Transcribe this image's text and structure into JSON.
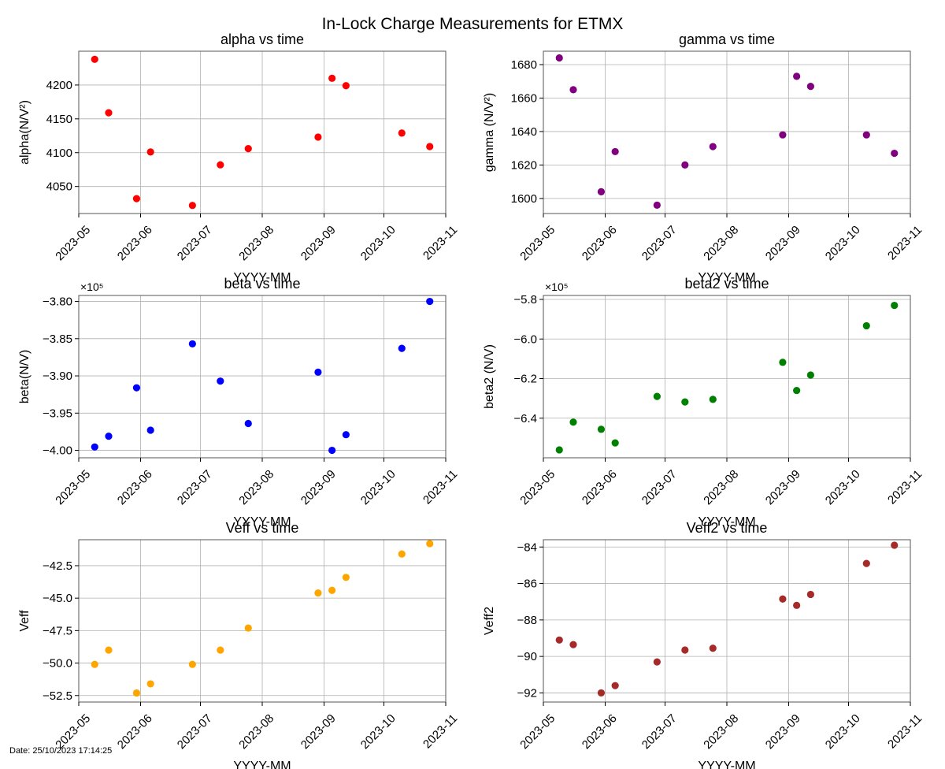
{
  "figure": {
    "title": "In-Lock Charge Measurements for ETMX",
    "date_stamp": "Date: 25/10/2023 17:14:25"
  },
  "chart_data": [
    {
      "id": "alpha",
      "type": "scatter",
      "title": "alpha vs time",
      "xlabel": "YYYY-MM",
      "ylabel": "alpha(N/V²)",
      "color": "#ff0000",
      "grid": true,
      "xlim": [
        "2023-05-01",
        "2023-11-01"
      ],
      "ylim": [
        4010,
        4250
      ],
      "x_ticks": [
        "2023-05",
        "2023-06",
        "2023-07",
        "2023-08",
        "2023-09",
        "2023-10",
        "2023-11"
      ],
      "y_ticks": [
        4050,
        4100,
        4150,
        4200
      ],
      "y_tick_labels": [
        "4050",
        "4100",
        "4150",
        "4200"
      ],
      "y_offset_label": "",
      "points": [
        {
          "x": "2023-05-09",
          "y": 4238
        },
        {
          "x": "2023-05-16",
          "y": 4159
        },
        {
          "x": "2023-05-30",
          "y": 4032
        },
        {
          "x": "2023-06-06",
          "y": 4101
        },
        {
          "x": "2023-06-27",
          "y": 4022
        },
        {
          "x": "2023-07-11",
          "y": 4082
        },
        {
          "x": "2023-07-25",
          "y": 4106
        },
        {
          "x": "2023-08-29",
          "y": 4123
        },
        {
          "x": "2023-09-05",
          "y": 4210
        },
        {
          "x": "2023-09-12",
          "y": 4199
        },
        {
          "x": "2023-10-10",
          "y": 4129
        },
        {
          "x": "2023-10-24",
          "y": 4109
        }
      ]
    },
    {
      "id": "gamma",
      "type": "scatter",
      "title": "gamma vs time",
      "xlabel": "YYYY-MM",
      "ylabel": "gamma (N/V²)",
      "color": "#800080",
      "grid": true,
      "xlim": [
        "2023-05-01",
        "2023-11-01"
      ],
      "ylim": [
        1591,
        1688
      ],
      "x_ticks": [
        "2023-05",
        "2023-06",
        "2023-07",
        "2023-08",
        "2023-09",
        "2023-10",
        "2023-11"
      ],
      "y_ticks": [
        1600,
        1620,
        1640,
        1660,
        1680
      ],
      "y_tick_labels": [
        "1600",
        "1620",
        "1640",
        "1660",
        "1680"
      ],
      "y_offset_label": "",
      "points": [
        {
          "x": "2023-05-09",
          "y": 1684
        },
        {
          "x": "2023-05-16",
          "y": 1665
        },
        {
          "x": "2023-05-30",
          "y": 1604
        },
        {
          "x": "2023-06-06",
          "y": 1628
        },
        {
          "x": "2023-06-27",
          "y": 1596
        },
        {
          "x": "2023-07-11",
          "y": 1620
        },
        {
          "x": "2023-07-25",
          "y": 1631
        },
        {
          "x": "2023-08-29",
          "y": 1638
        },
        {
          "x": "2023-09-05",
          "y": 1673
        },
        {
          "x": "2023-09-12",
          "y": 1667
        },
        {
          "x": "2023-10-10",
          "y": 1638
        },
        {
          "x": "2023-10-24",
          "y": 1627
        }
      ]
    },
    {
      "id": "beta",
      "type": "scatter",
      "title": "beta vs time",
      "xlabel": "YYYY-MM",
      "ylabel": "beta(N/V)",
      "color": "#0000ff",
      "grid": true,
      "xlim": [
        "2023-05-01",
        "2023-11-01"
      ],
      "ylim": [
        -401000,
        -379200
      ],
      "x_ticks": [
        "2023-05",
        "2023-06",
        "2023-07",
        "2023-08",
        "2023-09",
        "2023-10",
        "2023-11"
      ],
      "y_ticks": [
        -400000,
        -395000,
        -390000,
        -385000,
        -380000
      ],
      "y_tick_labels": [
        "−4.00",
        "−3.95",
        "−3.90",
        "−3.85",
        "−3.80"
      ],
      "y_offset_label": "×10⁵",
      "points": [
        {
          "x": "2023-05-09",
          "y": -399550
        },
        {
          "x": "2023-05-16",
          "y": -398100
        },
        {
          "x": "2023-05-30",
          "y": -391600
        },
        {
          "x": "2023-06-06",
          "y": -397300
        },
        {
          "x": "2023-06-27",
          "y": -385700
        },
        {
          "x": "2023-07-11",
          "y": -390700
        },
        {
          "x": "2023-07-25",
          "y": -396400
        },
        {
          "x": "2023-08-29",
          "y": -389500
        },
        {
          "x": "2023-09-05",
          "y": -400000
        },
        {
          "x": "2023-09-12",
          "y": -397900
        },
        {
          "x": "2023-10-10",
          "y": -386300
        },
        {
          "x": "2023-10-24",
          "y": -380000
        }
      ]
    },
    {
      "id": "beta2",
      "type": "scatter",
      "title": "beta2 vs time",
      "xlabel": "YYYY-MM",
      "ylabel": "beta2 (N/V)",
      "color": "#008000",
      "grid": true,
      "xlim": [
        "2023-05-01",
        "2023-11-01"
      ],
      "ylim": [
        -660000,
        -578000
      ],
      "x_ticks": [
        "2023-05",
        "2023-06",
        "2023-07",
        "2023-08",
        "2023-09",
        "2023-10",
        "2023-11"
      ],
      "y_ticks": [
        -640000,
        -620000,
        -600000,
        -580000
      ],
      "y_tick_labels": [
        "−6.4",
        "−6.2",
        "−6.0",
        "−5.8"
      ],
      "y_offset_label": "×10⁵",
      "points": [
        {
          "x": "2023-05-09",
          "y": -656000
        },
        {
          "x": "2023-05-16",
          "y": -642000
        },
        {
          "x": "2023-05-30",
          "y": -645600
        },
        {
          "x": "2023-06-06",
          "y": -652500
        },
        {
          "x": "2023-06-27",
          "y": -629000
        },
        {
          "x": "2023-07-11",
          "y": -631800
        },
        {
          "x": "2023-07-25",
          "y": -630500
        },
        {
          "x": "2023-08-29",
          "y": -611800
        },
        {
          "x": "2023-09-05",
          "y": -626000
        },
        {
          "x": "2023-09-12",
          "y": -618200
        },
        {
          "x": "2023-10-10",
          "y": -593300
        },
        {
          "x": "2023-10-24",
          "y": -583000
        }
      ]
    },
    {
      "id": "veff",
      "type": "scatter",
      "title": "Veff vs time",
      "xlabel": "YYYY-MM",
      "ylabel": "Veff",
      "color": "#ffa500",
      "grid": true,
      "xlim": [
        "2023-05-01",
        "2023-11-01"
      ],
      "ylim": [
        -53.0,
        -40.5
      ],
      "x_ticks": [
        "2023-05",
        "2023-06",
        "2023-07",
        "2023-08",
        "2023-09",
        "2023-10",
        "2023-11"
      ],
      "y_ticks": [
        -52.5,
        -50.0,
        -47.5,
        -45.0,
        -42.5
      ],
      "y_tick_labels": [
        "−52.5",
        "−50.0",
        "−47.5",
        "−45.0",
        "−42.5"
      ],
      "y_offset_label": "",
      "points": [
        {
          "x": "2023-05-09",
          "y": -50.1
        },
        {
          "x": "2023-05-16",
          "y": -49.0
        },
        {
          "x": "2023-05-30",
          "y": -52.3
        },
        {
          "x": "2023-06-06",
          "y": -51.6
        },
        {
          "x": "2023-06-27",
          "y": -50.1
        },
        {
          "x": "2023-07-11",
          "y": -49.0
        },
        {
          "x": "2023-07-25",
          "y": -47.3
        },
        {
          "x": "2023-08-29",
          "y": -44.6
        },
        {
          "x": "2023-09-05",
          "y": -44.4
        },
        {
          "x": "2023-09-12",
          "y": -43.4
        },
        {
          "x": "2023-10-10",
          "y": -41.6
        },
        {
          "x": "2023-10-24",
          "y": -40.8
        }
      ]
    },
    {
      "id": "veff2",
      "type": "scatter",
      "title": "Veff2 vs time",
      "xlabel": "YYYY-MM",
      "ylabel": "Veff2",
      "color": "#a52a2a",
      "grid": true,
      "xlim": [
        "2023-05-01",
        "2023-11-01"
      ],
      "ylim": [
        -92.5,
        -83.6
      ],
      "x_ticks": [
        "2023-05",
        "2023-06",
        "2023-07",
        "2023-08",
        "2023-09",
        "2023-10",
        "2023-11"
      ],
      "y_ticks": [
        -92,
        -90,
        -88,
        -86,
        -84
      ],
      "y_tick_labels": [
        "−92",
        "−90",
        "−88",
        "−86",
        "−84"
      ],
      "y_offset_label": "",
      "points": [
        {
          "x": "2023-05-09",
          "y": -89.1
        },
        {
          "x": "2023-05-16",
          "y": -89.35
        },
        {
          "x": "2023-05-30",
          "y": -92.0
        },
        {
          "x": "2023-06-06",
          "y": -91.6
        },
        {
          "x": "2023-06-27",
          "y": -90.3
        },
        {
          "x": "2023-07-11",
          "y": -89.65
        },
        {
          "x": "2023-07-25",
          "y": -89.55
        },
        {
          "x": "2023-08-29",
          "y": -86.85
        },
        {
          "x": "2023-09-05",
          "y": -87.2
        },
        {
          "x": "2023-09-12",
          "y": -86.6
        },
        {
          "x": "2023-10-10",
          "y": -84.9
        },
        {
          "x": "2023-10-24",
          "y": -83.9
        }
      ]
    }
  ]
}
